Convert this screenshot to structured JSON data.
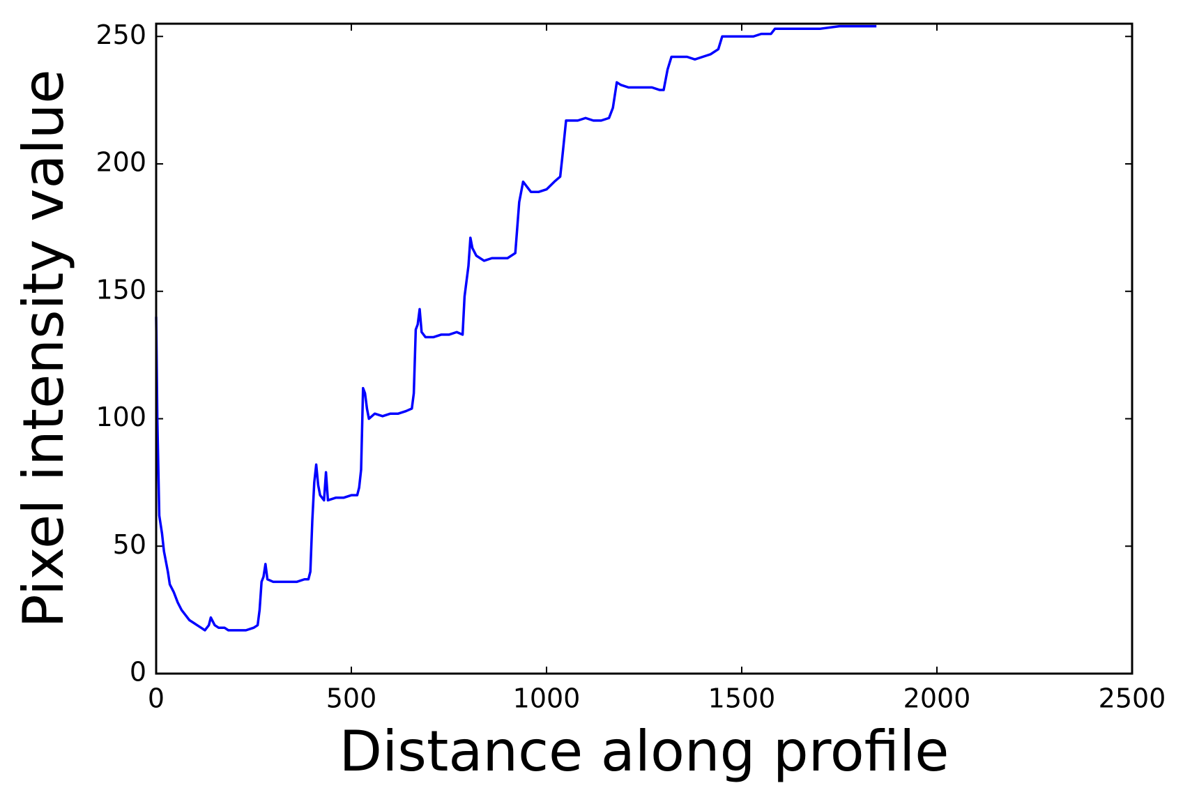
{
  "chart_data": {
    "type": "line",
    "xlabel": "Distance along profile",
    "ylabel": "Pixel intensity value",
    "xlim": [
      0,
      2500
    ],
    "xticks": [
      0,
      500,
      1000,
      1500,
      2000,
      2500
    ],
    "ylim": [
      0,
      255
    ],
    "yticks": [
      0,
      50,
      100,
      150,
      200,
      250
    ],
    "grid": false,
    "series": [
      {
        "color": "#0000ff",
        "x": [
          0,
          3,
          8,
          15,
          20,
          30,
          35,
          45,
          55,
          65,
          75,
          85,
          95,
          105,
          115,
          125,
          135,
          140,
          150,
          160,
          175,
          185,
          200,
          215,
          230,
          250,
          260,
          265,
          270,
          275,
          280,
          285,
          300,
          320,
          340,
          360,
          380,
          390,
          395,
          400,
          405,
          410,
          415,
          420,
          430,
          435,
          440,
          460,
          480,
          500,
          515,
          520,
          525,
          530,
          535,
          540,
          545,
          560,
          580,
          600,
          620,
          640,
          655,
          660,
          665,
          670,
          675,
          680,
          690,
          710,
          730,
          750,
          770,
          785,
          790,
          800,
          805,
          810,
          820,
          840,
          860,
          880,
          900,
          920,
          930,
          940,
          950,
          960,
          980,
          1000,
          1020,
          1035,
          1040,
          1050,
          1060,
          1080,
          1100,
          1120,
          1140,
          1160,
          1170,
          1180,
          1190,
          1210,
          1230,
          1250,
          1270,
          1290,
          1300,
          1310,
          1320,
          1340,
          1360,
          1380,
          1400,
          1420,
          1440,
          1450,
          1470,
          1500,
          1530,
          1550,
          1575,
          1585,
          1610,
          1650,
          1700,
          1750,
          1800,
          1845
        ],
        "values": [
          140,
          100,
          62,
          55,
          48,
          40,
          35,
          32,
          28,
          25,
          23,
          21,
          20,
          19,
          18,
          17,
          19,
          22,
          19,
          18,
          18,
          17,
          17,
          17,
          17,
          18,
          19,
          25,
          36,
          38,
          43,
          37,
          36,
          36,
          36,
          36,
          37,
          37,
          40,
          60,
          75,
          82,
          74,
          70,
          68,
          79,
          68,
          69,
          69,
          70,
          70,
          73,
          80,
          112,
          110,
          104,
          100,
          102,
          101,
          102,
          102,
          103,
          104,
          110,
          135,
          137,
          143,
          134,
          132,
          132,
          133,
          133,
          134,
          133,
          148,
          160,
          171,
          167,
          164,
          162,
          163,
          163,
          163,
          165,
          185,
          193,
          191,
          189,
          189,
          190,
          193,
          195,
          202,
          217,
          217,
          217,
          218,
          217,
          217,
          218,
          222,
          232,
          231,
          230,
          230,
          230,
          230,
          229,
          229,
          237,
          242,
          242,
          242,
          241,
          242,
          243,
          245,
          250,
          250,
          250,
          250,
          251,
          251,
          253,
          253,
          253,
          253,
          254,
          254,
          254
        ]
      }
    ]
  }
}
